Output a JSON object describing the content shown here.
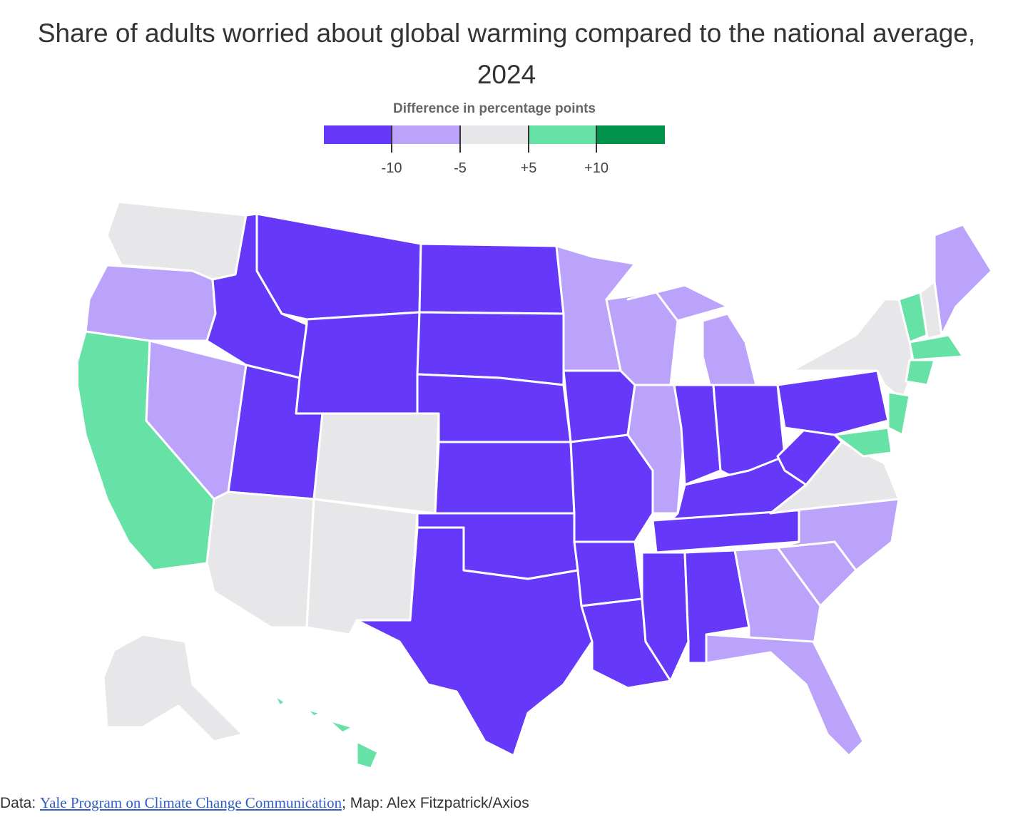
{
  "title": "Share of adults worried about global warming compared to the national average, 2024",
  "legend": {
    "title": "Difference in percentage points",
    "ticks": [
      "-10",
      "-5",
      "+5",
      "+10"
    ],
    "colors": [
      "#6638fa",
      "#bba2fb",
      "#e7e7e9",
      "#66e2a6",
      "#00914b"
    ]
  },
  "map": {
    "regions": [
      {
        "name": "Washington",
        "bin": 2
      },
      {
        "name": "Oregon",
        "bin": 1
      },
      {
        "name": "California",
        "bin": 3
      },
      {
        "name": "Nevada",
        "bin": 1
      },
      {
        "name": "Idaho",
        "bin": 0
      },
      {
        "name": "Montana",
        "bin": 0
      },
      {
        "name": "Wyoming",
        "bin": 0
      },
      {
        "name": "Utah",
        "bin": 0
      },
      {
        "name": "Arizona",
        "bin": 2
      },
      {
        "name": "Colorado",
        "bin": 2
      },
      {
        "name": "New Mexico",
        "bin": 2
      },
      {
        "name": "North Dakota",
        "bin": 0
      },
      {
        "name": "South Dakota",
        "bin": 0
      },
      {
        "name": "Nebraska",
        "bin": 0
      },
      {
        "name": "Kansas",
        "bin": 0
      },
      {
        "name": "Oklahoma",
        "bin": 0
      },
      {
        "name": "Texas",
        "bin": 0
      },
      {
        "name": "Minnesota",
        "bin": 1
      },
      {
        "name": "Iowa",
        "bin": 0
      },
      {
        "name": "Missouri",
        "bin": 0
      },
      {
        "name": "Arkansas",
        "bin": 0
      },
      {
        "name": "Louisiana",
        "bin": 0
      },
      {
        "name": "Wisconsin",
        "bin": 1
      },
      {
        "name": "Illinois",
        "bin": 1
      },
      {
        "name": "Michigan",
        "bin": 1
      },
      {
        "name": "Indiana",
        "bin": 0
      },
      {
        "name": "Ohio",
        "bin": 0
      },
      {
        "name": "Kentucky",
        "bin": 0
      },
      {
        "name": "Tennessee",
        "bin": 0
      },
      {
        "name": "Mississippi",
        "bin": 0
      },
      {
        "name": "Alabama",
        "bin": 0
      },
      {
        "name": "Georgia",
        "bin": 1
      },
      {
        "name": "Florida",
        "bin": 1
      },
      {
        "name": "South Carolina",
        "bin": 1
      },
      {
        "name": "North Carolina",
        "bin": 1
      },
      {
        "name": "Virginia",
        "bin": 2
      },
      {
        "name": "West Virginia",
        "bin": 0
      },
      {
        "name": "Pennsylvania",
        "bin": 0
      },
      {
        "name": "New York",
        "bin": 2
      },
      {
        "name": "Vermont",
        "bin": 3
      },
      {
        "name": "New Hampshire",
        "bin": 2
      },
      {
        "name": "Maine",
        "bin": 1
      },
      {
        "name": "Massachusetts",
        "bin": 3
      },
      {
        "name": "Connecticut",
        "bin": 3
      },
      {
        "name": "New Jersey",
        "bin": 3
      },
      {
        "name": "Maryland",
        "bin": 3
      },
      {
        "name": "Alaska",
        "bin": 2
      },
      {
        "name": "Hawaii",
        "bin": 3
      }
    ]
  },
  "source": {
    "prefix": "Data: ",
    "link_text": "Yale Program on Climate Change Communication",
    "suffix": "; Map: Alex Fitzpatrick/Axios"
  }
}
